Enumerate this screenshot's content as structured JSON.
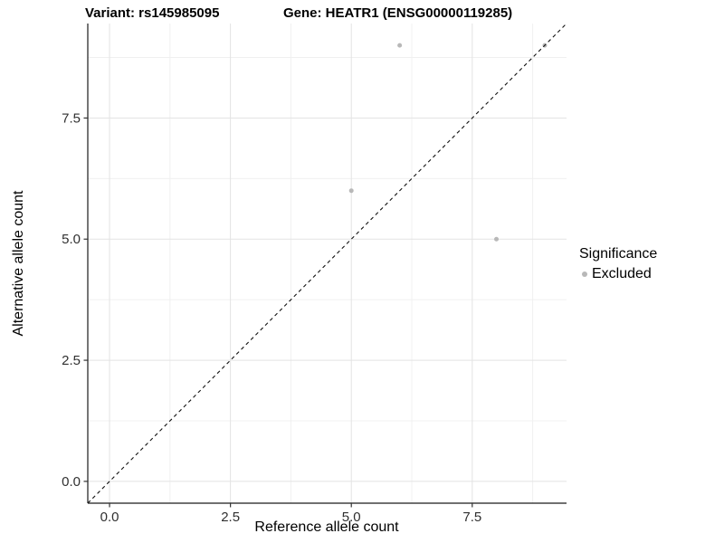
{
  "header": {
    "left_title": "Variant: rs145985095",
    "right_title": "Gene: HEATR1 (ENSG00000119285)"
  },
  "chart_data": {
    "type": "scatter",
    "title": "Variant: rs145985095 | Gene: HEATR1 (ENSG00000119285)",
    "xlabel": "Reference allele count",
    "ylabel": "Alternative allele count",
    "xlim": [
      -0.45,
      9.45
    ],
    "ylim": [
      -0.45,
      9.45
    ],
    "x_ticks": [
      0.0,
      2.5,
      5.0,
      7.5
    ],
    "y_ticks": [
      0.0,
      2.5,
      5.0,
      7.5
    ],
    "x_tick_labels": [
      "0.0",
      "2.5",
      "5.0",
      "7.5"
    ],
    "y_tick_labels": [
      "0.0",
      "2.5",
      "5.0",
      "7.5"
    ],
    "x_minor_ticks": [
      1.25,
      3.75,
      6.25,
      8.75
    ],
    "y_minor_ticks": [
      1.25,
      3.75,
      6.25,
      8.75
    ],
    "grid": "major and minor, light grey on white",
    "series": [
      {
        "name": "Excluded",
        "points": [
          [
            5,
            6
          ],
          [
            6,
            9
          ],
          [
            8,
            5
          ],
          [
            9,
            9
          ]
        ]
      }
    ],
    "reference_line": {
      "kind": "identity y=x",
      "slope": 1,
      "intercept": 0,
      "style": "dashed",
      "color": "#111111"
    },
    "legend": {
      "title": "Significance",
      "position": "right",
      "items": [
        {
          "label": "Excluded",
          "color": "#b8b8b8"
        }
      ]
    },
    "colors": {
      "point": "#b8b8b8",
      "grid_major": "#e3e3e3",
      "grid_minor": "#f0f0f0",
      "axis_line": "#1a1a1a",
      "tick_mark": "#333333",
      "tick_label": "#303030",
      "background": "#ffffff"
    }
  }
}
